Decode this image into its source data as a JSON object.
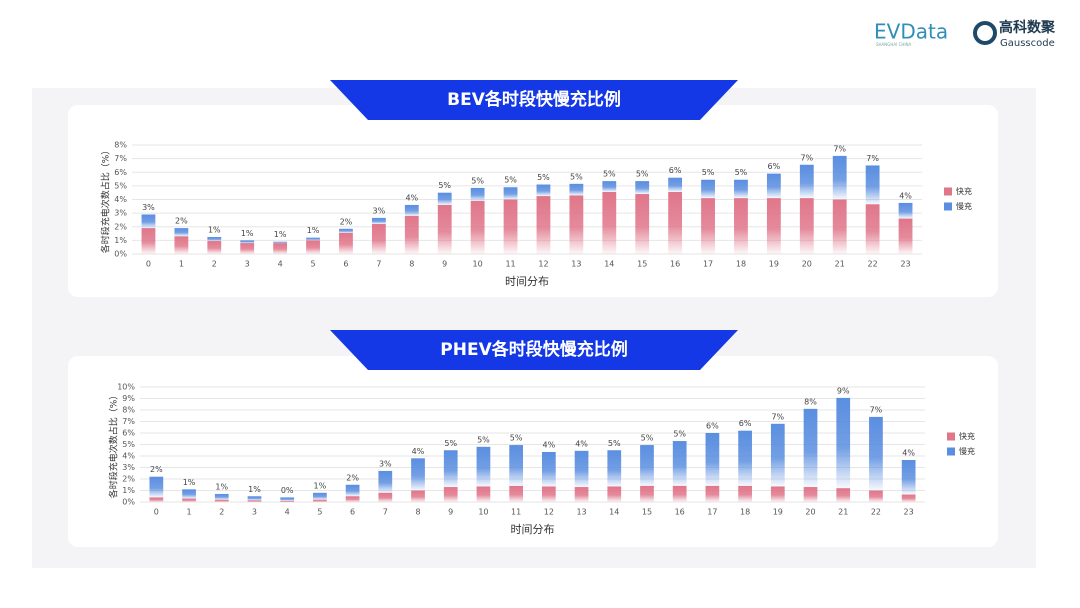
{
  "header": {
    "logo_left": "EVData",
    "logo_left_sub": "SHANGHAI CHINA",
    "logo_right": "高科数聚",
    "logo_right_sub": "Gausscode"
  },
  "chart_data": [
    {
      "type": "bar",
      "stacked": true,
      "title": "BEV各时段快慢充比例",
      "y_label": "各时段充电次数占比（%）",
      "x_label": "时间分布",
      "categories": [
        "0",
        "1",
        "2",
        "3",
        "4",
        "5",
        "6",
        "7",
        "8",
        "9",
        "10",
        "11",
        "12",
        "13",
        "14",
        "15",
        "16",
        "17",
        "18",
        "19",
        "20",
        "21",
        "22",
        "23"
      ],
      "series": [
        {
          "name": "快充",
          "color": "#e0768a",
          "values": [
            1.9,
            1.3,
            0.95,
            0.8,
            0.8,
            1.0,
            1.55,
            2.2,
            2.8,
            3.6,
            3.9,
            4.0,
            4.25,
            4.3,
            4.55,
            4.4,
            4.55,
            4.1,
            4.1,
            4.1,
            4.1,
            4.0,
            3.65,
            2.6
          ]
        },
        {
          "name": "慢充",
          "color": "#5a8ee0",
          "values": [
            1.0,
            0.6,
            0.3,
            0.2,
            0.1,
            0.2,
            0.3,
            0.45,
            0.8,
            0.9,
            0.95,
            0.9,
            0.85,
            0.85,
            0.8,
            0.95,
            1.05,
            1.35,
            1.35,
            1.8,
            2.45,
            3.2,
            2.85,
            1.15
          ]
        }
      ],
      "total_labels": [
        "3%",
        "2%",
        "1%",
        "1%",
        "1%",
        "1%",
        "2%",
        "3%",
        "4%",
        "5%",
        "5%",
        "5%",
        "5%",
        "5%",
        "5%",
        "5%",
        "6%",
        "5%",
        "5%",
        "6%",
        "7%",
        "7%",
        "7%",
        "4%"
      ],
      "ylim": [
        0,
        8
      ],
      "yticks": [
        {
          "value": 0,
          "label": "0%"
        },
        {
          "value": 1,
          "label": "1%"
        },
        {
          "value": 2,
          "label": "2%"
        },
        {
          "value": 3,
          "label": "3%"
        },
        {
          "value": 4,
          "label": "4%"
        },
        {
          "value": 5,
          "label": "5%"
        },
        {
          "value": 6,
          "label": "6%"
        },
        {
          "value": 7,
          "label": "7%"
        },
        {
          "value": 8,
          "label": "8%"
        }
      ],
      "grid": true,
      "legend": "right"
    },
    {
      "type": "bar",
      "stacked": true,
      "title": "PHEV各时段快慢充比例",
      "y_label": "各时段充电次数占比（%）",
      "x_label": "时间分布",
      "categories": [
        "0",
        "1",
        "2",
        "3",
        "4",
        "5",
        "6",
        "7",
        "8",
        "9",
        "10",
        "11",
        "12",
        "13",
        "14",
        "15",
        "16",
        "17",
        "18",
        "19",
        "20",
        "21",
        "22",
        "23"
      ],
      "series": [
        {
          "name": "快充",
          "color": "#e0768a",
          "values": [
            0.4,
            0.3,
            0.2,
            0.15,
            0.1,
            0.2,
            0.5,
            0.8,
            1.0,
            1.3,
            1.35,
            1.4,
            1.35,
            1.3,
            1.35,
            1.4,
            1.4,
            1.4,
            1.4,
            1.35,
            1.3,
            1.2,
            1.0,
            0.65
          ]
        },
        {
          "name": "慢充",
          "color": "#5a8ee0",
          "values": [
            1.8,
            0.8,
            0.5,
            0.35,
            0.3,
            0.6,
            1.0,
            1.9,
            2.8,
            3.2,
            3.45,
            3.55,
            3.0,
            3.15,
            3.15,
            3.55,
            3.9,
            4.6,
            4.8,
            5.45,
            6.8,
            7.85,
            6.4,
            3.0
          ]
        }
      ],
      "total_labels": [
        "2%",
        "1%",
        "1%",
        "1%",
        "0%",
        "1%",
        "2%",
        "3%",
        "4%",
        "5%",
        "5%",
        "5%",
        "4%",
        "4%",
        "5%",
        "5%",
        "5%",
        "6%",
        "6%",
        "7%",
        "8%",
        "9%",
        "7%",
        "4%"
      ],
      "ylim": [
        0,
        10
      ],
      "yticks": [
        {
          "value": 0,
          "label": "0%"
        },
        {
          "value": 1,
          "label": "1%"
        },
        {
          "value": 2,
          "label": "2%"
        },
        {
          "value": 3,
          "label": "3%"
        },
        {
          "value": 4,
          "label": "4%"
        },
        {
          "value": 5,
          "label": "5%"
        },
        {
          "value": 6,
          "label": "6%"
        },
        {
          "value": 7,
          "label": "7%"
        },
        {
          "value": 8,
          "label": "8%"
        },
        {
          "value": 9,
          "label": "9%"
        },
        {
          "value": 10,
          "label": "10%"
        }
      ],
      "grid": true,
      "legend": "right"
    }
  ]
}
